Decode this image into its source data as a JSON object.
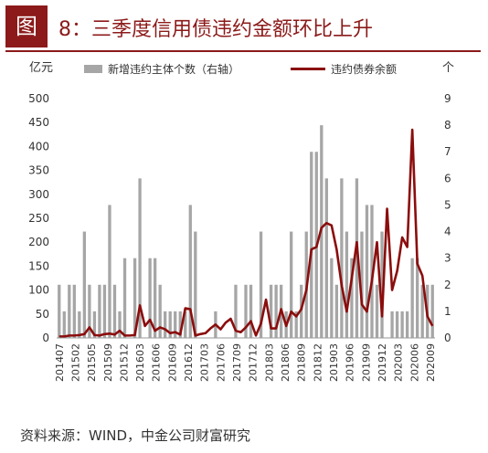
{
  "figure": {
    "badge": "图",
    "title": "8：三季度信用债违约金额环比上升",
    "source": "资料来源：WIND，中金公司财富研究"
  },
  "chart_data": {
    "type": "bar+line",
    "left_unit": "亿元",
    "right_unit": "个",
    "left_ylim": [
      0,
      500
    ],
    "left_ticks": [
      0,
      50,
      100,
      150,
      200,
      250,
      300,
      350,
      400,
      450,
      500
    ],
    "right_ylim": [
      0,
      9
    ],
    "right_ticks": [
      0,
      1,
      2,
      3,
      4,
      5,
      6,
      7,
      8,
      9
    ],
    "x_tick_labels": [
      "201407",
      "201502",
      "201505",
      "201509",
      "201512",
      "201603",
      "201606",
      "201609",
      "201612",
      "201703",
      "201706",
      "201709",
      "201712",
      "201803",
      "201806",
      "201809",
      "201812",
      "201903",
      "201906",
      "201909",
      "201912",
      "202003",
      "202006",
      "202009"
    ],
    "legend": [
      {
        "name": "新增违约主体个数（右轴）",
        "color": "#a6a6a6",
        "kind": "bar"
      },
      {
        "name": "违约债券余额",
        "color": "#8b0d0d",
        "kind": "line"
      }
    ],
    "months": 75,
    "series": [
      {
        "name": "新增违约主体个数（右轴）",
        "axis": "right",
        "values": [
          2,
          1,
          2,
          2,
          1,
          4,
          2,
          1,
          2,
          2,
          5,
          2,
          1,
          3,
          0,
          3,
          6,
          0,
          3,
          3,
          2,
          1,
          1,
          1,
          1,
          1,
          5,
          4,
          0,
          0,
          0,
          1,
          0,
          0,
          0,
          2,
          0,
          2,
          2,
          0,
          4,
          0,
          2,
          2,
          2,
          1,
          4,
          1,
          2,
          4,
          7,
          7,
          8,
          6,
          3,
          2,
          6,
          4,
          3,
          6,
          4,
          5,
          5,
          2,
          4,
          0,
          1,
          1,
          1,
          1,
          3,
          3,
          2,
          2,
          2
        ],
        "color": "#a6a6a6"
      },
      {
        "name": "违约债券余额",
        "axis": "left",
        "values": [
          3,
          3,
          5,
          5,
          6,
          8,
          22,
          6,
          5,
          8,
          9,
          7,
          15,
          5,
          5,
          6,
          68,
          25,
          38,
          15,
          22,
          18,
          10,
          12,
          7,
          62,
          60,
          5,
          8,
          10,
          20,
          28,
          18,
          32,
          40,
          15,
          12,
          22,
          35,
          5,
          30,
          80,
          20,
          20,
          60,
          25,
          55,
          45,
          60,
          100,
          185,
          190,
          230,
          240,
          235,
          185,
          110,
          55,
          125,
          200,
          70,
          55,
          120,
          200,
          45,
          270,
          100,
          140,
          210,
          190,
          435,
          155,
          130,
          45,
          25
        ],
        "color": "#8b0d0d"
      }
    ]
  }
}
